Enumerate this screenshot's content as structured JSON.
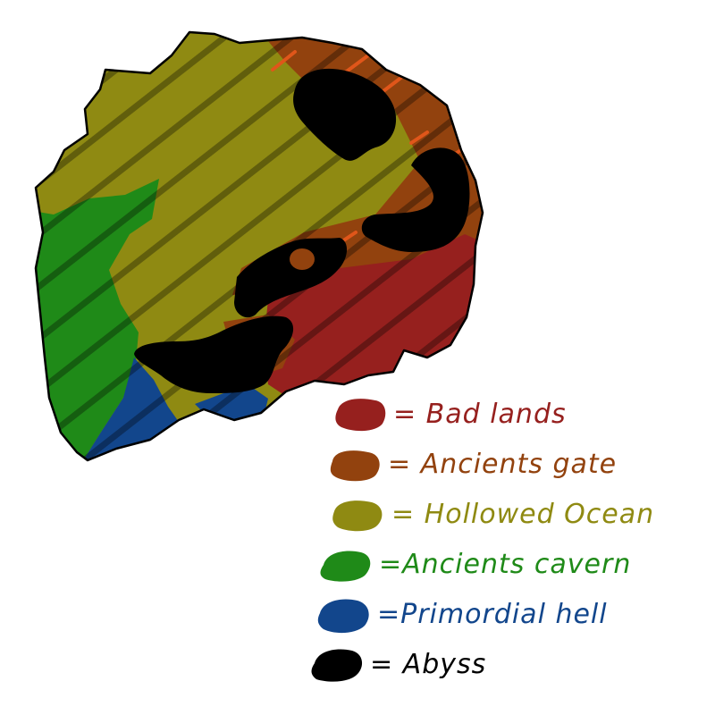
{
  "colors": {
    "bad_lands": "#96201e",
    "ancients_gate": "#92420e",
    "hollowed_ocean": "#8f8a12",
    "ancients_cavern": "#1f8a18",
    "primordial_hell": "#12468c",
    "abyss": "#000000",
    "hatch": "rgba(0,0,0,0.32)",
    "hatch_highlight": "#e0561a",
    "outline": "#000000"
  },
  "legend": [
    {
      "key": "bad_lands",
      "label": "= Bad lands",
      "color": "#96201e"
    },
    {
      "key": "ancients_gate",
      "label": "= Ancients gate",
      "color": "#92420e"
    },
    {
      "key": "hollowed_ocean",
      "label": "= Hollowed Ocean",
      "color": "#8f8a12"
    },
    {
      "key": "ancients_cavern",
      "label": "=Ancients cavern",
      "color": "#1f8a18"
    },
    {
      "key": "primordial_hell",
      "label": "=Primordial hell",
      "color": "#12468c"
    },
    {
      "key": "abyss",
      "label": "= Abyss",
      "color": "#000000"
    }
  ]
}
